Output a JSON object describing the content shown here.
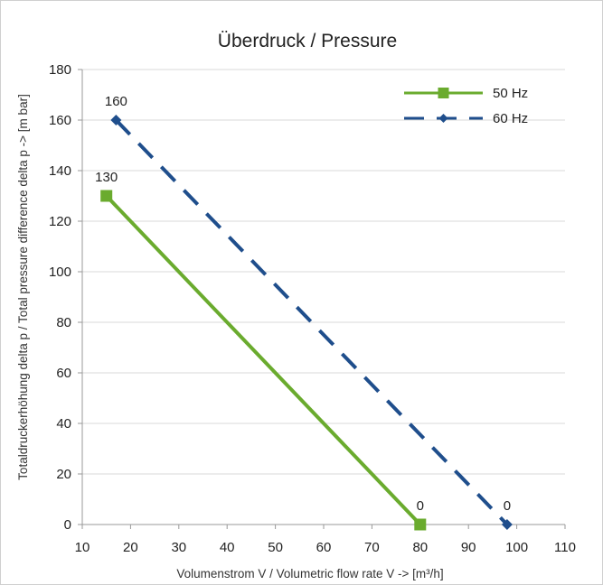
{
  "colors": {
    "series_50hz": "#6aab2e",
    "series_60hz": "#1f4e8c",
    "grid": "#d9d9d9",
    "axis": "#999999"
  },
  "chart_data": {
    "type": "line",
    "title": "Überdruck / Pressure",
    "xlabel": "Volumenstrom V / Volumetric flow rate V -> [m³/h]",
    "ylabel": "Totaldruckerhöhung delta p / Total pressure difference delta p -> [m bar]",
    "xlim": [
      10,
      110
    ],
    "ylim": [
      0,
      180
    ],
    "x_ticks": [
      10,
      20,
      30,
      40,
      50,
      60,
      70,
      80,
      90,
      100,
      110
    ],
    "y_ticks": [
      0,
      20,
      40,
      60,
      80,
      100,
      120,
      140,
      160,
      180
    ],
    "grid": "horizontal",
    "legend_position": "top-right",
    "series": [
      {
        "name": "50 Hz",
        "color": "#6aab2e",
        "line_style": "solid",
        "marker": "square",
        "points": [
          {
            "x": 15,
            "y": 130,
            "label": "130"
          },
          {
            "x": 80,
            "y": 0,
            "label": "0"
          }
        ]
      },
      {
        "name": "60 Hz",
        "color": "#1f4e8c",
        "line_style": "dashed",
        "marker": "diamond",
        "points": [
          {
            "x": 17,
            "y": 160,
            "label": "160"
          },
          {
            "x": 98,
            "y": 0,
            "label": "0"
          }
        ]
      }
    ]
  }
}
